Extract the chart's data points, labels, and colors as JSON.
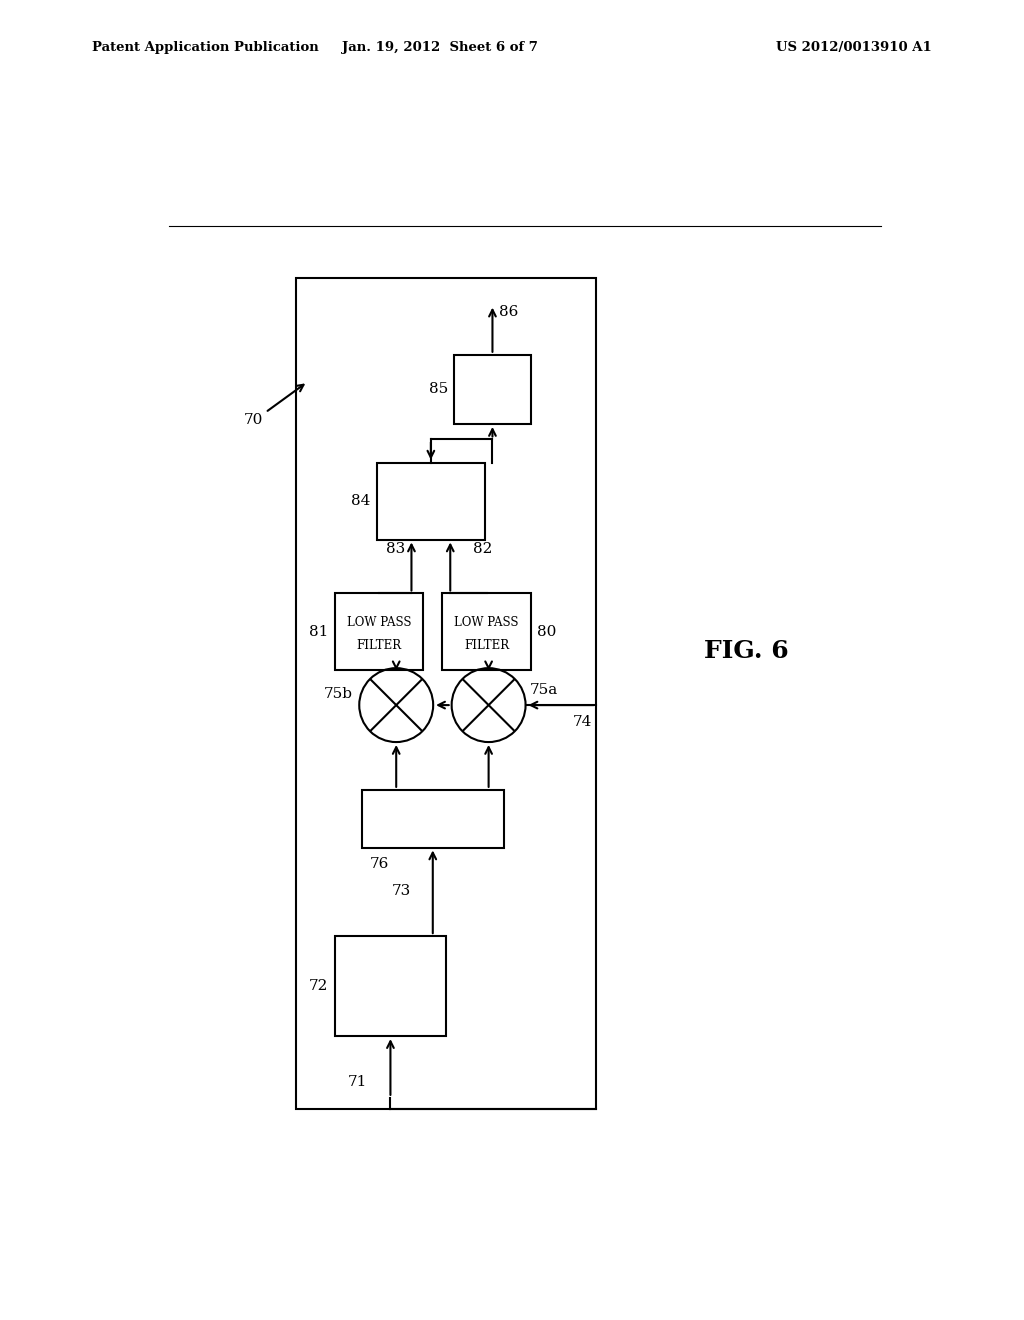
{
  "bg_color": "#ffffff",
  "line_color": "#000000",
  "header_left": "Patent Application Publication",
  "header_center": "Jan. 19, 2012  Sheet 6 of 7",
  "header_right": "US 2012/0013910 A1",
  "fig_label": "FIG. 6"
}
